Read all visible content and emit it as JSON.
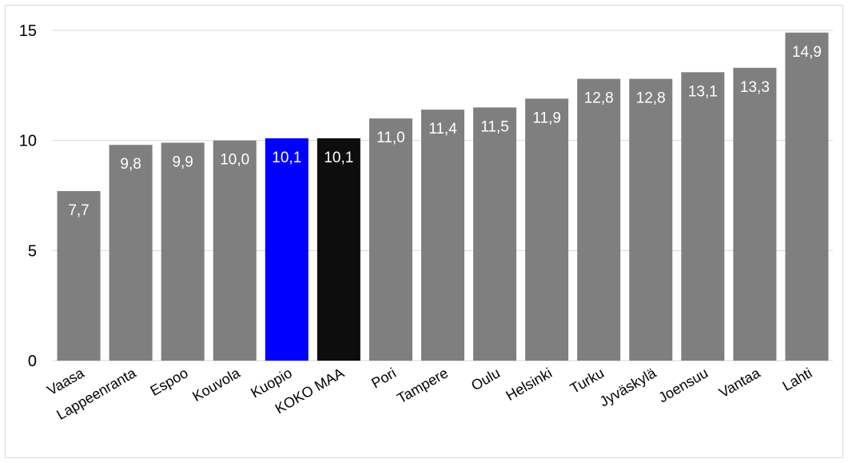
{
  "chart_data": {
    "type": "bar",
    "title": "",
    "xlabel": "",
    "ylabel": "",
    "ylim": [
      0,
      15
    ],
    "yticks": [
      0,
      5,
      10,
      15
    ],
    "grid": true,
    "legend": "none",
    "categories": [
      "Vaasa",
      "Lappeenranta",
      "Espoo",
      "Kouvola",
      "Kuopio",
      "KOKO MAA",
      "Pori",
      "Tampere",
      "Oulu",
      "Helsinki",
      "Turku",
      "Jyväskylä",
      "Joensuu",
      "Vantaa",
      "Lahti"
    ],
    "values": [
      7.7,
      9.8,
      9.9,
      10.0,
      10.1,
      10.1,
      11.0,
      11.4,
      11.5,
      11.9,
      12.8,
      12.8,
      13.1,
      13.3,
      14.9
    ],
    "value_labels": [
      "7,7",
      "9,8",
      "9,9",
      "10,0",
      "10,1",
      "10,1",
      "11,0",
      "11,4",
      "11,5",
      "11,9",
      "12,8",
      "12,8",
      "13,1",
      "13,3",
      "14,9"
    ],
    "colors": {
      "default_bar": "#7f7f7f",
      "highlight_kuopio": "#0000ff",
      "highlight_koko_maa": "#0d0d0d",
      "gridline": "#d9d9d9",
      "value_label": "#ffffff"
    },
    "bar_colors": [
      "#7f7f7f",
      "#7f7f7f",
      "#7f7f7f",
      "#7f7f7f",
      "#0000ff",
      "#0d0d0d",
      "#7f7f7f",
      "#7f7f7f",
      "#7f7f7f",
      "#7f7f7f",
      "#7f7f7f",
      "#7f7f7f",
      "#7f7f7f",
      "#7f7f7f",
      "#7f7f7f"
    ]
  }
}
